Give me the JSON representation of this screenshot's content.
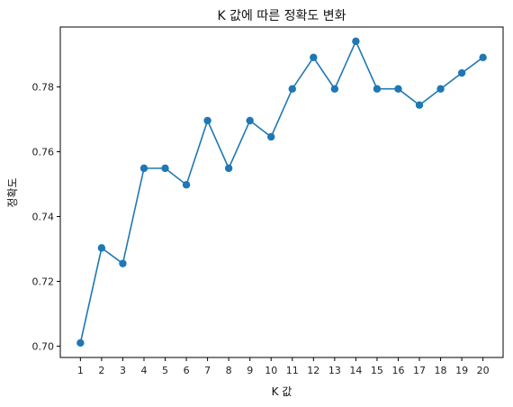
{
  "chart_data": {
    "type": "line",
    "title": "K 값에 따른 정확도 변화",
    "xlabel": "K 값",
    "ylabel": "정확도",
    "x": [
      1,
      2,
      3,
      4,
      5,
      6,
      7,
      8,
      9,
      10,
      11,
      12,
      13,
      14,
      15,
      16,
      17,
      18,
      19,
      20
    ],
    "series": [
      {
        "values": [
          0.701,
          0.7303,
          0.7255,
          0.7549,
          0.7549,
          0.7498,
          0.7696,
          0.7549,
          0.7696,
          0.7646,
          0.7794,
          0.7891,
          0.7794,
          0.7941,
          0.7794,
          0.7794,
          0.7744,
          0.7794,
          0.7843,
          0.7891
        ],
        "color": "#1f77b4",
        "marker": "circle"
      }
    ],
    "xticks": [
      "1",
      "2",
      "3",
      "4",
      "5",
      "6",
      "7",
      "8",
      "9",
      "10",
      "11",
      "12",
      "13",
      "14",
      "15",
      "16",
      "17",
      "18",
      "19",
      "20"
    ],
    "yticks": [
      "0.70",
      "0.72",
      "0.74",
      "0.76",
      "0.78"
    ],
    "ylim": [
      0.6965,
      0.7985
    ],
    "xlim": [
      0.05,
      20.95
    ],
    "grid": false
  }
}
